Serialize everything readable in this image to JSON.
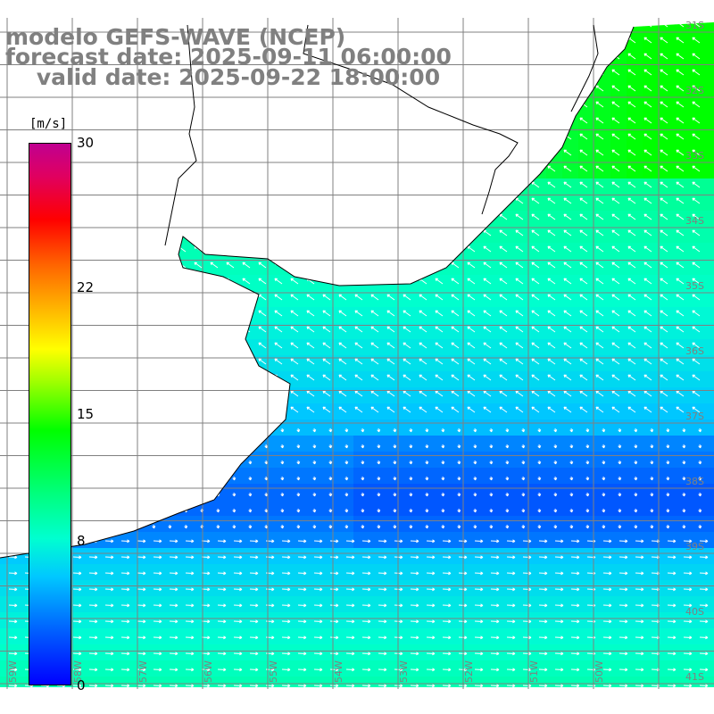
{
  "title": {
    "line1": "modelo GEFS-WAVE (NCEP)",
    "line2": "forecast date: 2025-09-11 06:00:00",
    "line3": "valid date: 2025-09-22 18:00:00"
  },
  "colorbar": {
    "unit": "[m/s]",
    "min": 0,
    "max": 30,
    "ticks": [
      "30",
      "22",
      "15",
      "8",
      "0"
    ],
    "tick_values": [
      30,
      22,
      15,
      8,
      0
    ]
  },
  "map": {
    "lat_labels": [
      "31S",
      "32S",
      "33S",
      "34S",
      "35S",
      "36S",
      "37S",
      "38S",
      "39S",
      "40S",
      "41S"
    ],
    "lon_labels": [
      "59W",
      "58W",
      "57W",
      "56W",
      "55W",
      "54W",
      "53W",
      "52W",
      "51W",
      "50W"
    ],
    "colors": {
      "land": "#ffffff",
      "coast": "#000000",
      "grid": "#808080",
      "arrows": "#ffffff",
      "title": "#808080"
    },
    "field_description_key": "wind speed with direction arrows"
  }
}
